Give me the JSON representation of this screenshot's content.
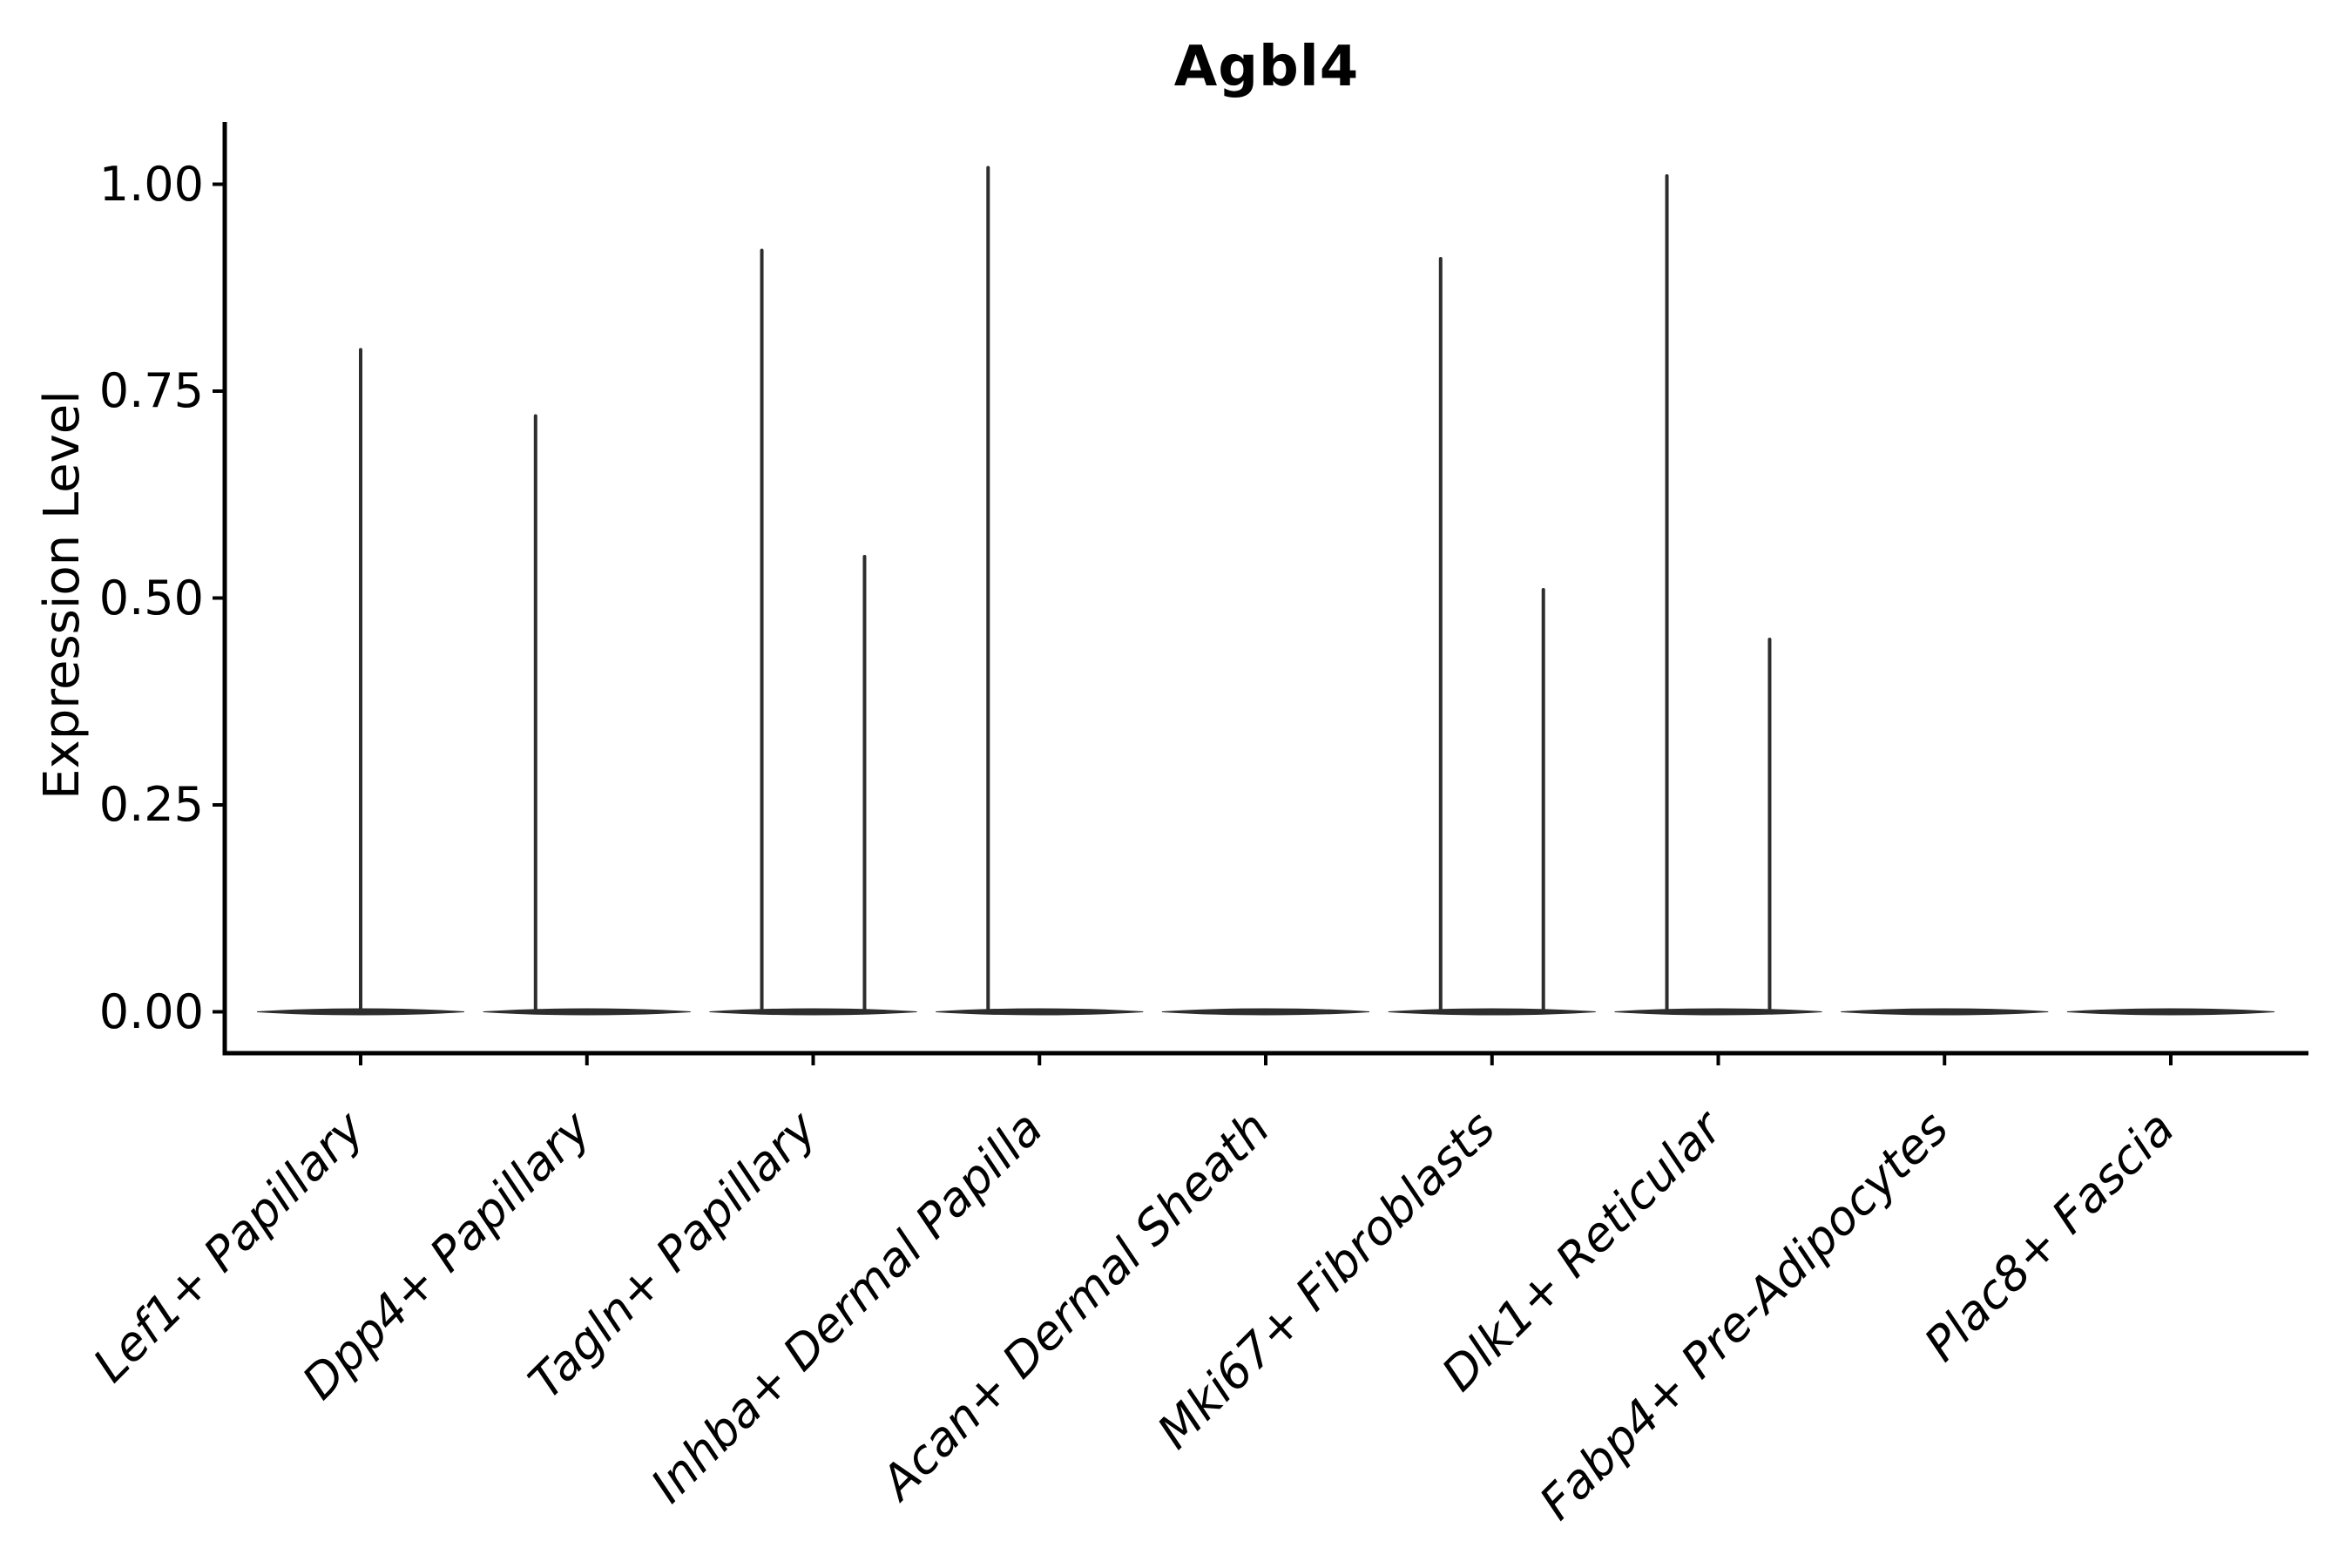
{
  "title": "Agbl4",
  "y_axis": {
    "label": "Expression Level",
    "ticks": [
      {
        "label": "1.00",
        "value": 1.0
      },
      {
        "label": "0.75",
        "value": 0.75
      },
      {
        "label": "0.50",
        "value": 0.5
      },
      {
        "label": "0.25",
        "value": 0.25
      },
      {
        "label": "0.00",
        "value": 0.0
      }
    ]
  },
  "colors": {
    "violin": "#2d2d2d",
    "axis": "#000000",
    "text": "#000000",
    "background": "#ffffff"
  },
  "chart_data": {
    "type": "violin",
    "title": "Agbl4",
    "xlabel": "",
    "ylabel": "Expression Level",
    "ylim": [
      0,
      1.07
    ],
    "yticks": [
      0.0,
      0.25,
      0.5,
      0.75,
      1.0
    ],
    "grid": false,
    "legend": false,
    "description": "Single-cell expression violin plot; each category shows a flat near-zero density base spanning 0.9 of the category width plus thin vertical density spikes reaching the maximum expression values.",
    "categories": [
      {
        "label": "Lef1+ Papillary",
        "base": 0.0,
        "spikes": [
          {
            "x_offset": 0.0,
            "peak": 0.8
          }
        ]
      },
      {
        "label": "Dpp4+ Papillary",
        "base": 0.0,
        "spikes": [
          {
            "x_offset": -0.227,
            "peak": 0.72
          }
        ]
      },
      {
        "label": "Tagln+ Papillary",
        "base": 0.0,
        "spikes": [
          {
            "x_offset": -0.227,
            "peak": 0.92
          },
          {
            "x_offset": 0.227,
            "peak": 0.55
          }
        ]
      },
      {
        "label": "Inhba+ Dermal Papilla",
        "base": 0.0,
        "spikes": [
          {
            "x_offset": -0.227,
            "peak": 1.02
          }
        ]
      },
      {
        "label": "Acan+ Dermal Sheath",
        "base": 0.0,
        "spikes": []
      },
      {
        "label": "Mki67+ Fibroblasts",
        "base": 0.0,
        "spikes": [
          {
            "x_offset": -0.227,
            "peak": 0.91
          },
          {
            "x_offset": 0.227,
            "peak": 0.51
          }
        ]
      },
      {
        "label": "Dlk1+ Reticular",
        "base": 0.0,
        "spikes": [
          {
            "x_offset": -0.227,
            "peak": 1.01
          },
          {
            "x_offset": 0.227,
            "peak": 0.45
          }
        ]
      },
      {
        "label": "Fabp4+ Pre-Adipocytes",
        "base": 0.0,
        "spikes": []
      },
      {
        "label": "Plac8+ Fascia",
        "base": 0.0,
        "spikes": []
      }
    ]
  }
}
